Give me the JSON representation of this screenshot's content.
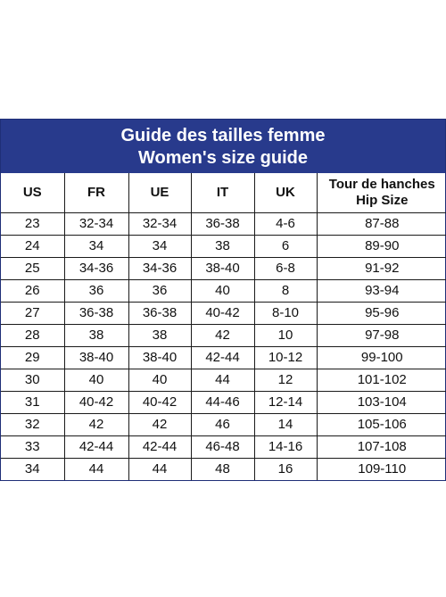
{
  "title": {
    "line1": "Guide des tailles femme",
    "line2": "Women's size guide"
  },
  "columns": [
    "US",
    "FR",
    "UE",
    "IT",
    "UK"
  ],
  "hip_header": {
    "line1": "Tour de hanches",
    "line2": "Hip Size"
  },
  "rows": [
    [
      "23",
      "32-34",
      "32-34",
      "36-38",
      "4-6",
      "87-88"
    ],
    [
      "24",
      "34",
      "34",
      "38",
      "6",
      "89-90"
    ],
    [
      "25",
      "34-36",
      "34-36",
      "38-40",
      "6-8",
      "91-92"
    ],
    [
      "26",
      "36",
      "36",
      "40",
      "8",
      "93-94"
    ],
    [
      "27",
      "36-38",
      "36-38",
      "40-42",
      "8-10",
      "95-96"
    ],
    [
      "28",
      "38",
      "38",
      "42",
      "10",
      "97-98"
    ],
    [
      "29",
      "38-40",
      "38-40",
      "42-44",
      "10-12",
      "99-100"
    ],
    [
      "30",
      "40",
      "40",
      "44",
      "12",
      "101-102"
    ],
    [
      "31",
      "40-42",
      "40-42",
      "44-46",
      "12-14",
      "103-104"
    ],
    [
      "32",
      "42",
      "42",
      "46",
      "14",
      "105-106"
    ],
    [
      "33",
      "42-44",
      "42-44",
      "46-48",
      "14-16",
      "107-108"
    ],
    [
      "34",
      "44",
      "44",
      "48",
      "16",
      "109-110"
    ]
  ],
  "colors": {
    "header_bg": "#283a8c",
    "header_text": "#ffffff",
    "grid": "#1a1a1a"
  }
}
